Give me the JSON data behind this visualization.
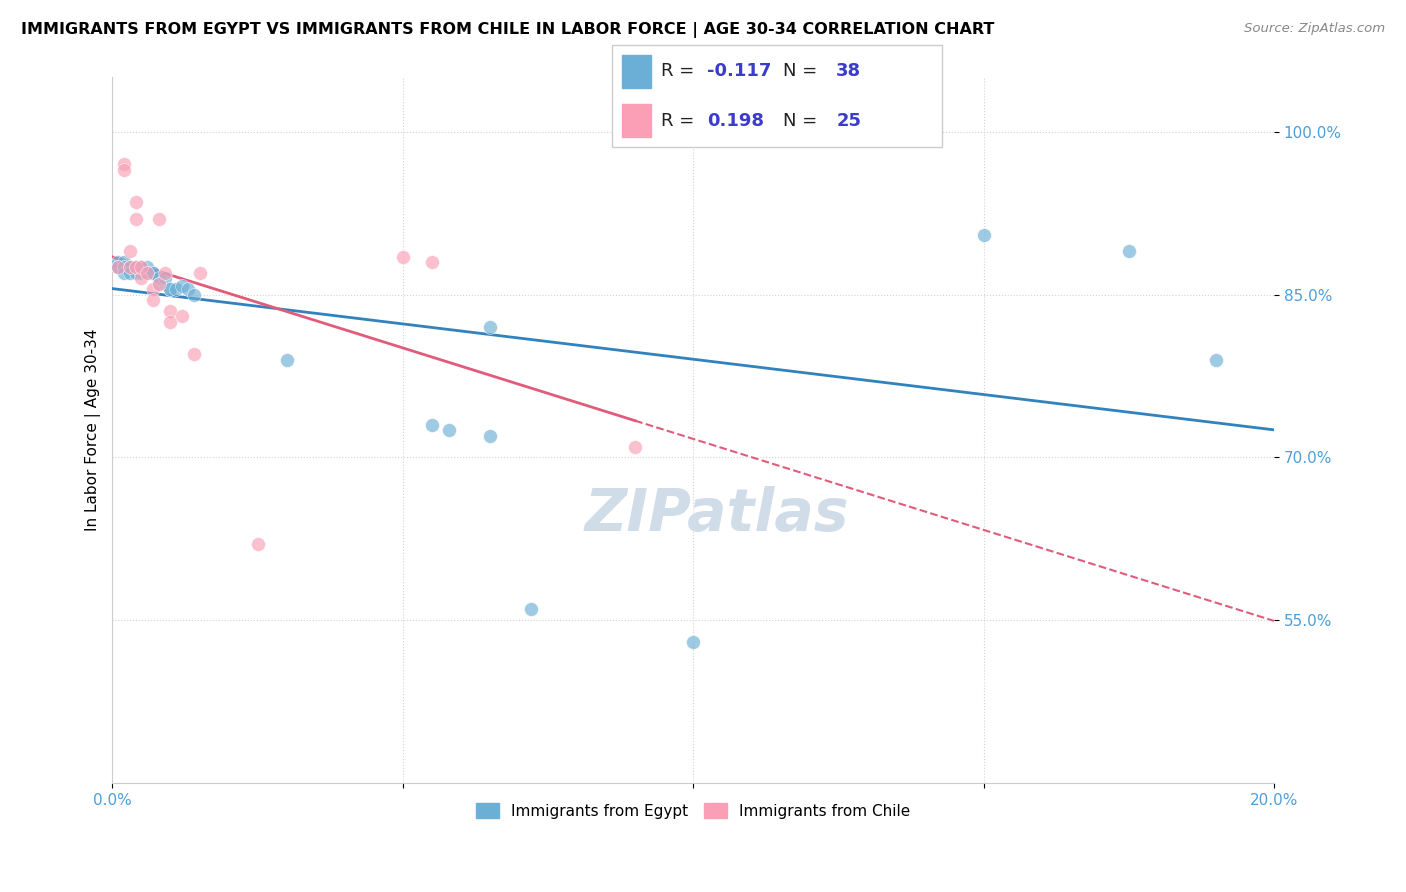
{
  "title": "IMMIGRANTS FROM EGYPT VS IMMIGRANTS FROM CHILE IN LABOR FORCE | AGE 30-34 CORRELATION CHART",
  "source": "Source: ZipAtlas.com",
  "xlabel_label": "Immigrants from Egypt",
  "chile_label": "Immigrants from Chile",
  "ylabel_label": "In Labor Force | Age 30-34",
  "xlim": [
    0.0,
    0.2
  ],
  "ylim": [
    0.4,
    1.05
  ],
  "xtick_positions": [
    0.0,
    0.05,
    0.1,
    0.15,
    0.2
  ],
  "xtick_labels": [
    "0.0%",
    "",
    "",
    "",
    "20.0%"
  ],
  "ytick_positions": [
    0.55,
    0.7,
    0.85,
    1.0
  ],
  "ytick_labels": [
    "55.0%",
    "70.0%",
    "85.0%",
    "100.0%"
  ],
  "r_egypt": -0.117,
  "n_egypt": 38,
  "r_chile": 0.198,
  "n_chile": 25,
  "egypt_color": "#6baed6",
  "chile_color": "#fa9fb5",
  "egypt_line_color": "#3182bd",
  "chile_line_color": "#e05c7a",
  "tick_color": "#4d9fdb",
  "watermark_color": "#d0dce8",
  "egypt_x": [
    0.001,
    0.001,
    0.001,
    0.002,
    0.002,
    0.002,
    0.002,
    0.003,
    0.003,
    0.003,
    0.003,
    0.004,
    0.004,
    0.005,
    0.005,
    0.006,
    0.006,
    0.007,
    0.007,
    0.008,
    0.008,
    0.009,
    0.01,
    0.01,
    0.011,
    0.012,
    0.013,
    0.014,
    0.03,
    0.055,
    0.058,
    0.065,
    0.065,
    0.072,
    0.1,
    0.15,
    0.175,
    0.19
  ],
  "egypt_y": [
    0.875,
    0.88,
    0.875,
    0.88,
    0.875,
    0.875,
    0.87,
    0.875,
    0.875,
    0.875,
    0.87,
    0.875,
    0.87,
    0.875,
    0.87,
    0.875,
    0.87,
    0.87,
    0.87,
    0.865,
    0.86,
    0.865,
    0.855,
    0.855,
    0.855,
    0.858,
    0.855,
    0.85,
    0.79,
    0.73,
    0.725,
    0.82,
    0.72,
    0.56,
    0.53,
    0.905,
    0.89,
    0.79
  ],
  "chile_x": [
    0.001,
    0.002,
    0.002,
    0.003,
    0.003,
    0.004,
    0.004,
    0.004,
    0.005,
    0.005,
    0.006,
    0.007,
    0.007,
    0.008,
    0.008,
    0.009,
    0.01,
    0.01,
    0.012,
    0.014,
    0.015,
    0.025,
    0.05,
    0.055,
    0.09
  ],
  "chile_y": [
    0.875,
    0.97,
    0.965,
    0.89,
    0.875,
    0.875,
    0.935,
    0.92,
    0.865,
    0.875,
    0.87,
    0.855,
    0.845,
    0.86,
    0.92,
    0.87,
    0.835,
    0.825,
    0.83,
    0.795,
    0.87,
    0.62,
    0.885,
    0.88,
    0.71
  ]
}
